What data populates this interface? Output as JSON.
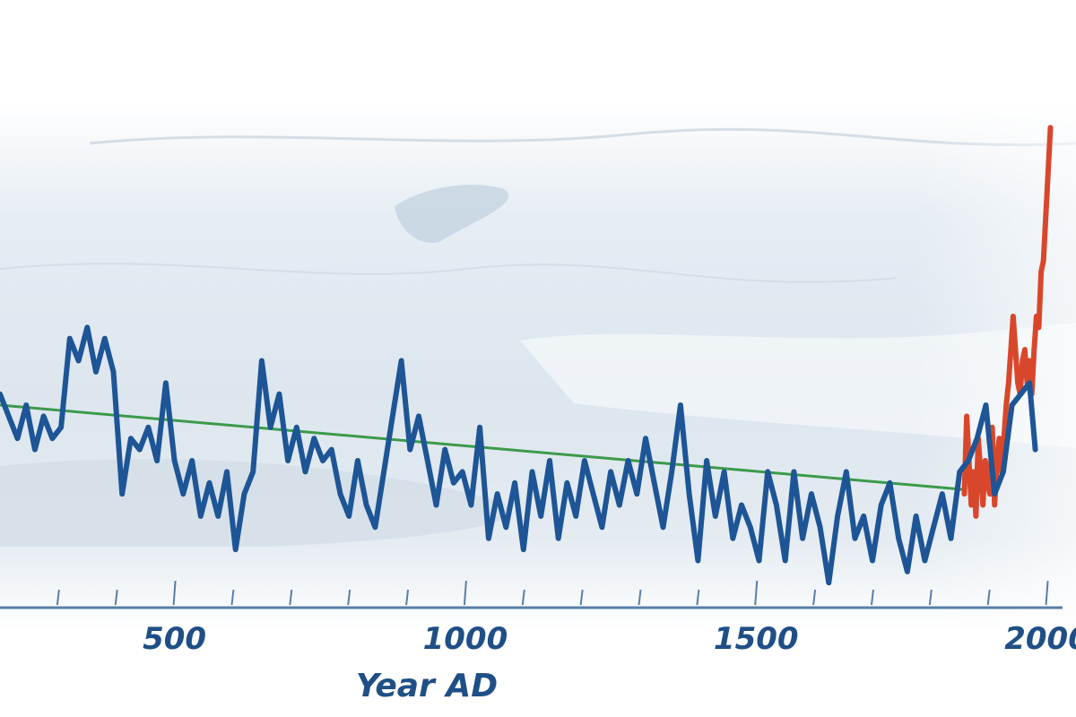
{
  "chart_data": {
    "type": "line",
    "xlabel": "Year AD",
    "ylabel": "",
    "title": "",
    "xlim": [
      200,
      2050
    ],
    "ylim": [
      -1.2,
      1.0
    ],
    "x_ticks": [
      500,
      1000,
      1500,
      2000
    ],
    "minor_tick_step": 100,
    "grid": false,
    "legend": "none",
    "colors": {
      "reconstruction": "#1d5596",
      "instrumental": "#d8472b",
      "trend": "#3c9a4a",
      "axis": "#5a7fa6",
      "text": "#1f4f86",
      "background_ice": "#dce6ef"
    },
    "series": [
      {
        "key": "reconstruction",
        "x": [
          200,
          215,
          230,
          245,
          260,
          275,
          290,
          305,
          320,
          335,
          350,
          365,
          380,
          395,
          410,
          425,
          440,
          455,
          470,
          485,
          500,
          515,
          530,
          545,
          560,
          575,
          590,
          605,
          620,
          635,
          650,
          665,
          680,
          695,
          710,
          725,
          740,
          755,
          770,
          785,
          800,
          815,
          830,
          845,
          860,
          875,
          890,
          905,
          920,
          935,
          950,
          965,
          980,
          995,
          1010,
          1025,
          1040,
          1055,
          1070,
          1085,
          1100,
          1115,
          1130,
          1145,
          1160,
          1175,
          1190,
          1205,
          1220,
          1235,
          1250,
          1265,
          1280,
          1295,
          1310,
          1325,
          1340,
          1355,
          1370,
          1385,
          1400,
          1415,
          1430,
          1445,
          1460,
          1475,
          1490,
          1505,
          1520,
          1535,
          1550,
          1565,
          1580,
          1595,
          1610,
          1625,
          1640,
          1655,
          1670,
          1685,
          1700,
          1715,
          1730,
          1745,
          1760,
          1775,
          1790,
          1805,
          1820,
          1835,
          1850,
          1865,
          1880,
          1895,
          1910,
          1925,
          1940,
          1955,
          1970,
          1980
        ],
        "y": [
          -0.25,
          -0.35,
          -0.45,
          -0.3,
          -0.5,
          -0.35,
          -0.45,
          -0.4,
          0.0,
          -0.1,
          0.05,
          -0.15,
          0.0,
          -0.15,
          -0.7,
          -0.45,
          -0.5,
          -0.4,
          -0.55,
          -0.2,
          -0.55,
          -0.7,
          -0.55,
          -0.8,
          -0.65,
          -0.8,
          -0.6,
          -0.95,
          -0.7,
          -0.6,
          -0.1,
          -0.4,
          -0.25,
          -0.55,
          -0.4,
          -0.6,
          -0.45,
          -0.55,
          -0.5,
          -0.7,
          -0.8,
          -0.55,
          -0.75,
          -0.85,
          -0.6,
          -0.35,
          -0.1,
          -0.5,
          -0.35,
          -0.55,
          -0.75,
          -0.5,
          -0.65,
          -0.6,
          -0.75,
          -0.4,
          -0.9,
          -0.7,
          -0.85,
          -0.65,
          -0.95,
          -0.6,
          -0.8,
          -0.55,
          -0.9,
          -0.65,
          -0.8,
          -0.55,
          -0.7,
          -0.85,
          -0.6,
          -0.75,
          -0.55,
          -0.7,
          -0.45,
          -0.65,
          -0.85,
          -0.6,
          -0.3,
          -0.7,
          -1.0,
          -0.55,
          -0.8,
          -0.6,
          -0.9,
          -0.75,
          -0.85,
          -1.0,
          -0.6,
          -0.75,
          -1.0,
          -0.6,
          -0.9,
          -0.7,
          -0.85,
          -1.1,
          -0.8,
          -0.6,
          -0.9,
          -0.8,
          -1.0,
          -0.75,
          -0.65,
          -0.9,
          -1.05,
          -0.8,
          -1.0,
          -0.85,
          -0.7,
          -0.9,
          -0.6,
          -0.55,
          -0.45,
          -0.3,
          -0.7,
          -0.6,
          -0.3,
          -0.25,
          -0.2,
          -0.5
        ]
      },
      {
        "key": "instrumental",
        "x": [
          1858,
          1862,
          1866,
          1870,
          1874,
          1878,
          1882,
          1886,
          1890,
          1894,
          1898,
          1902,
          1906,
          1910,
          1914,
          1918,
          1922,
          1926,
          1930,
          1934,
          1938,
          1942,
          1946,
          1950,
          1954,
          1958,
          1962,
          1966,
          1970,
          1974,
          1978,
          1982,
          1986,
          1990,
          1994,
          1998,
          2002,
          2006
        ],
        "y": [
          -0.7,
          -0.35,
          -0.55,
          -0.75,
          -0.6,
          -0.8,
          -0.45,
          -0.6,
          -0.75,
          -0.55,
          -0.65,
          -0.7,
          -0.4,
          -0.75,
          -0.55,
          -0.45,
          -0.6,
          -0.45,
          -0.3,
          -0.2,
          -0.05,
          0.1,
          -0.05,
          -0.2,
          -0.25,
          -0.1,
          -0.05,
          -0.2,
          -0.1,
          -0.25,
          -0.05,
          0.1,
          0.05,
          0.3,
          0.35,
          0.55,
          0.75,
          0.95
        ]
      },
      {
        "key": "trend",
        "x": [
          200,
          1858
        ],
        "y": [
          -0.3,
          -0.68
        ]
      }
    ]
  }
}
